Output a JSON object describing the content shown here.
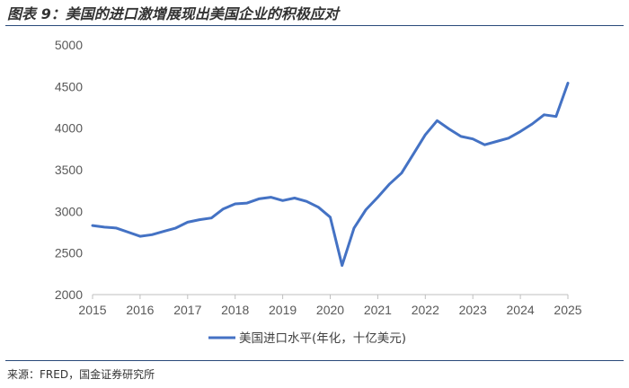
{
  "title": "图表 9：美国的进口激增展现出美国企业的积极应对",
  "source": "来源：FRED，国金证券研究所",
  "colors": {
    "line": "#4472c4",
    "axis": "#bfbfbf",
    "tick_text": "#595959"
  },
  "chart_data": {
    "type": "line",
    "title": "",
    "xlabel": "",
    "ylabel": "",
    "xlim": [
      2015,
      2025
    ],
    "ylim": [
      2000,
      5000
    ],
    "y_ticks": [
      2000,
      2500,
      3000,
      3500,
      4000,
      4500,
      5000
    ],
    "x_ticks": [
      2015,
      2016,
      2017,
      2018,
      2019,
      2020,
      2021,
      2022,
      2023,
      2024,
      2025
    ],
    "grid": false,
    "legend_position": "bottom",
    "series": [
      {
        "name": "美国进口水平(年化，十亿美元)",
        "x": [
          2015.0,
          2015.25,
          2015.5,
          2015.75,
          2016.0,
          2016.25,
          2016.5,
          2016.75,
          2017.0,
          2017.25,
          2017.5,
          2017.75,
          2018.0,
          2018.25,
          2018.5,
          2018.75,
          2019.0,
          2019.25,
          2019.5,
          2019.75,
          2020.0,
          2020.25,
          2020.5,
          2020.75,
          2021.0,
          2021.25,
          2021.5,
          2021.75,
          2022.0,
          2022.25,
          2022.5,
          2022.75,
          2023.0,
          2023.25,
          2023.5,
          2023.75,
          2024.0,
          2024.25,
          2024.5,
          2024.75,
          2025.0
        ],
        "values": [
          2830,
          2810,
          2800,
          2750,
          2700,
          2720,
          2760,
          2800,
          2870,
          2900,
          2920,
          3030,
          3090,
          3100,
          3150,
          3170,
          3130,
          3160,
          3120,
          3050,
          2930,
          2350,
          2800,
          3020,
          3170,
          3330,
          3460,
          3690,
          3920,
          4090,
          3990,
          3900,
          3870,
          3800,
          3840,
          3880,
          3960,
          4050,
          4160,
          4140,
          4540
        ]
      }
    ]
  }
}
